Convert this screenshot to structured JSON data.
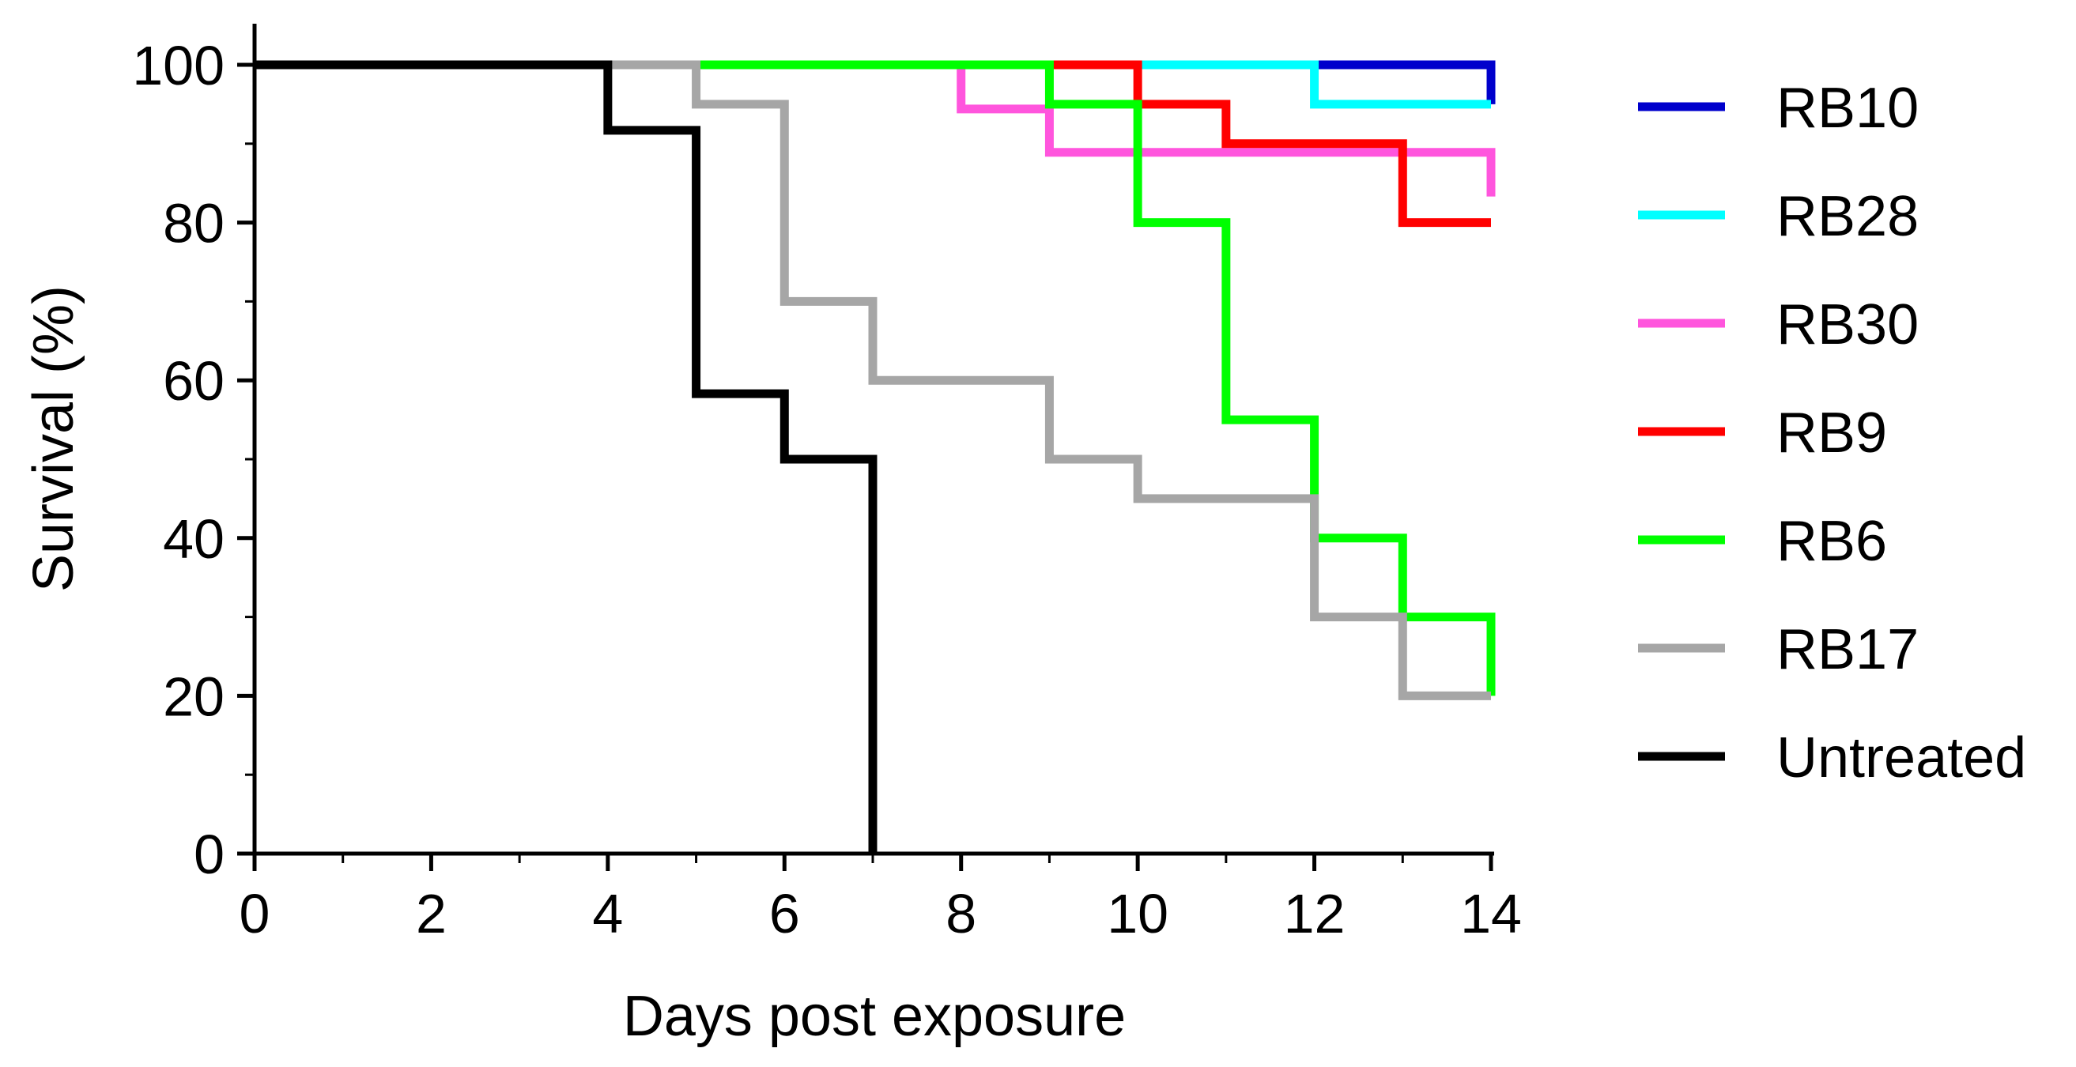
{
  "chart_data": {
    "type": "line",
    "title": "",
    "xlabel": "Days post exposure",
    "ylabel": "Survival (%)",
    "xlim": [
      0,
      14
    ],
    "ylim": [
      0,
      100
    ],
    "x_ticks": [
      "0",
      "2",
      "4",
      "6",
      "8",
      "10",
      "12",
      "14"
    ],
    "y_ticks": [
      "0",
      "20",
      "40",
      "60",
      "80",
      "100"
    ],
    "grid": false,
    "legend_position": "right",
    "step": true,
    "series": [
      {
        "name": "RB10",
        "color": "#0000cc",
        "x": [
          0,
          14,
          14
        ],
        "y": [
          100,
          100,
          95
        ]
      },
      {
        "name": "RB28",
        "color": "#00ffff",
        "x": [
          0,
          12,
          14
        ],
        "y": [
          100,
          95,
          95
        ]
      },
      {
        "name": "RB30",
        "color": "#ff55dd",
        "x": [
          0,
          8,
          9,
          14,
          14
        ],
        "y": [
          100,
          94.4,
          88.9,
          88.9,
          83.3
        ]
      },
      {
        "name": "RB9",
        "color": "#ff0000",
        "x": [
          0,
          10,
          11,
          13,
          14
        ],
        "y": [
          100,
          95,
          90,
          80,
          80
        ]
      },
      {
        "name": "RB6",
        "color": "#00ff00",
        "x": [
          0,
          9,
          10,
          11,
          12,
          13,
          14,
          14
        ],
        "y": [
          100,
          95,
          80,
          55,
          40,
          30,
          30,
          20
        ]
      },
      {
        "name": "RB17",
        "color": "#a6a6a6",
        "x": [
          4,
          5,
          6,
          7,
          9,
          10,
          12,
          13,
          14
        ],
        "y": [
          100,
          95,
          70,
          60,
          50,
          45,
          30,
          20,
          20
        ]
      },
      {
        "name": "Untreated",
        "color": "#000000",
        "x": [
          0,
          4,
          5,
          6,
          7
        ],
        "y": [
          100,
          91.7,
          58.3,
          50,
          0
        ]
      }
    ]
  }
}
